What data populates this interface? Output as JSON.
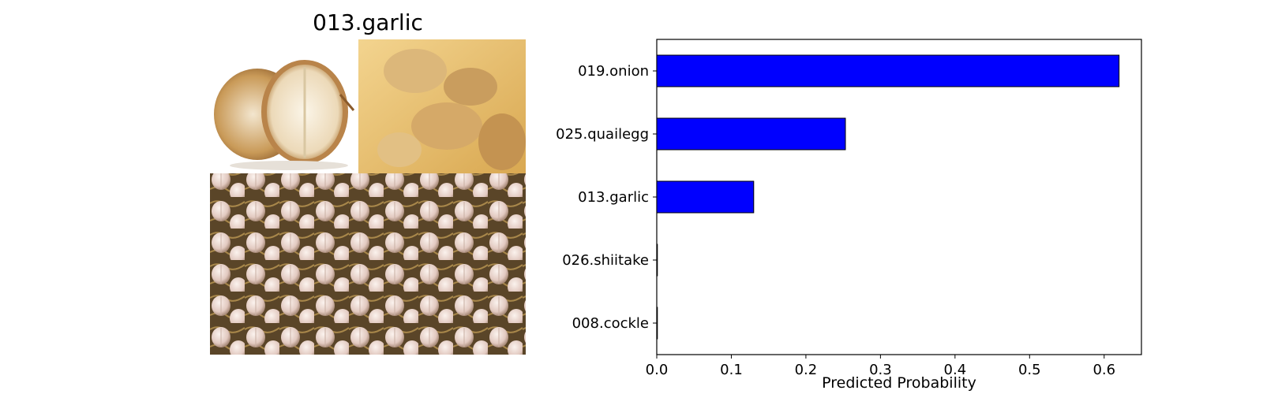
{
  "image_panel": {
    "title": "013.garlic",
    "photo_regions": [
      "onion",
      "ginger",
      "garlic"
    ]
  },
  "chart_data": {
    "type": "bar",
    "orientation": "horizontal",
    "categories": [
      "019.onion",
      "025.quailegg",
      "013.garlic",
      "026.shiitake",
      "008.cockle"
    ],
    "values": [
      0.62,
      0.253,
      0.13,
      0.0,
      0.0
    ],
    "xlabel": "Predicted Probability",
    "ylabel": "",
    "xlim": [
      0,
      0.65
    ],
    "xticks": [
      "0.0",
      "0.1",
      "0.2",
      "0.3",
      "0.4",
      "0.5",
      "0.6"
    ],
    "bar_color": "#0000ff",
    "edge_color": "#000000",
    "grid": false
  }
}
